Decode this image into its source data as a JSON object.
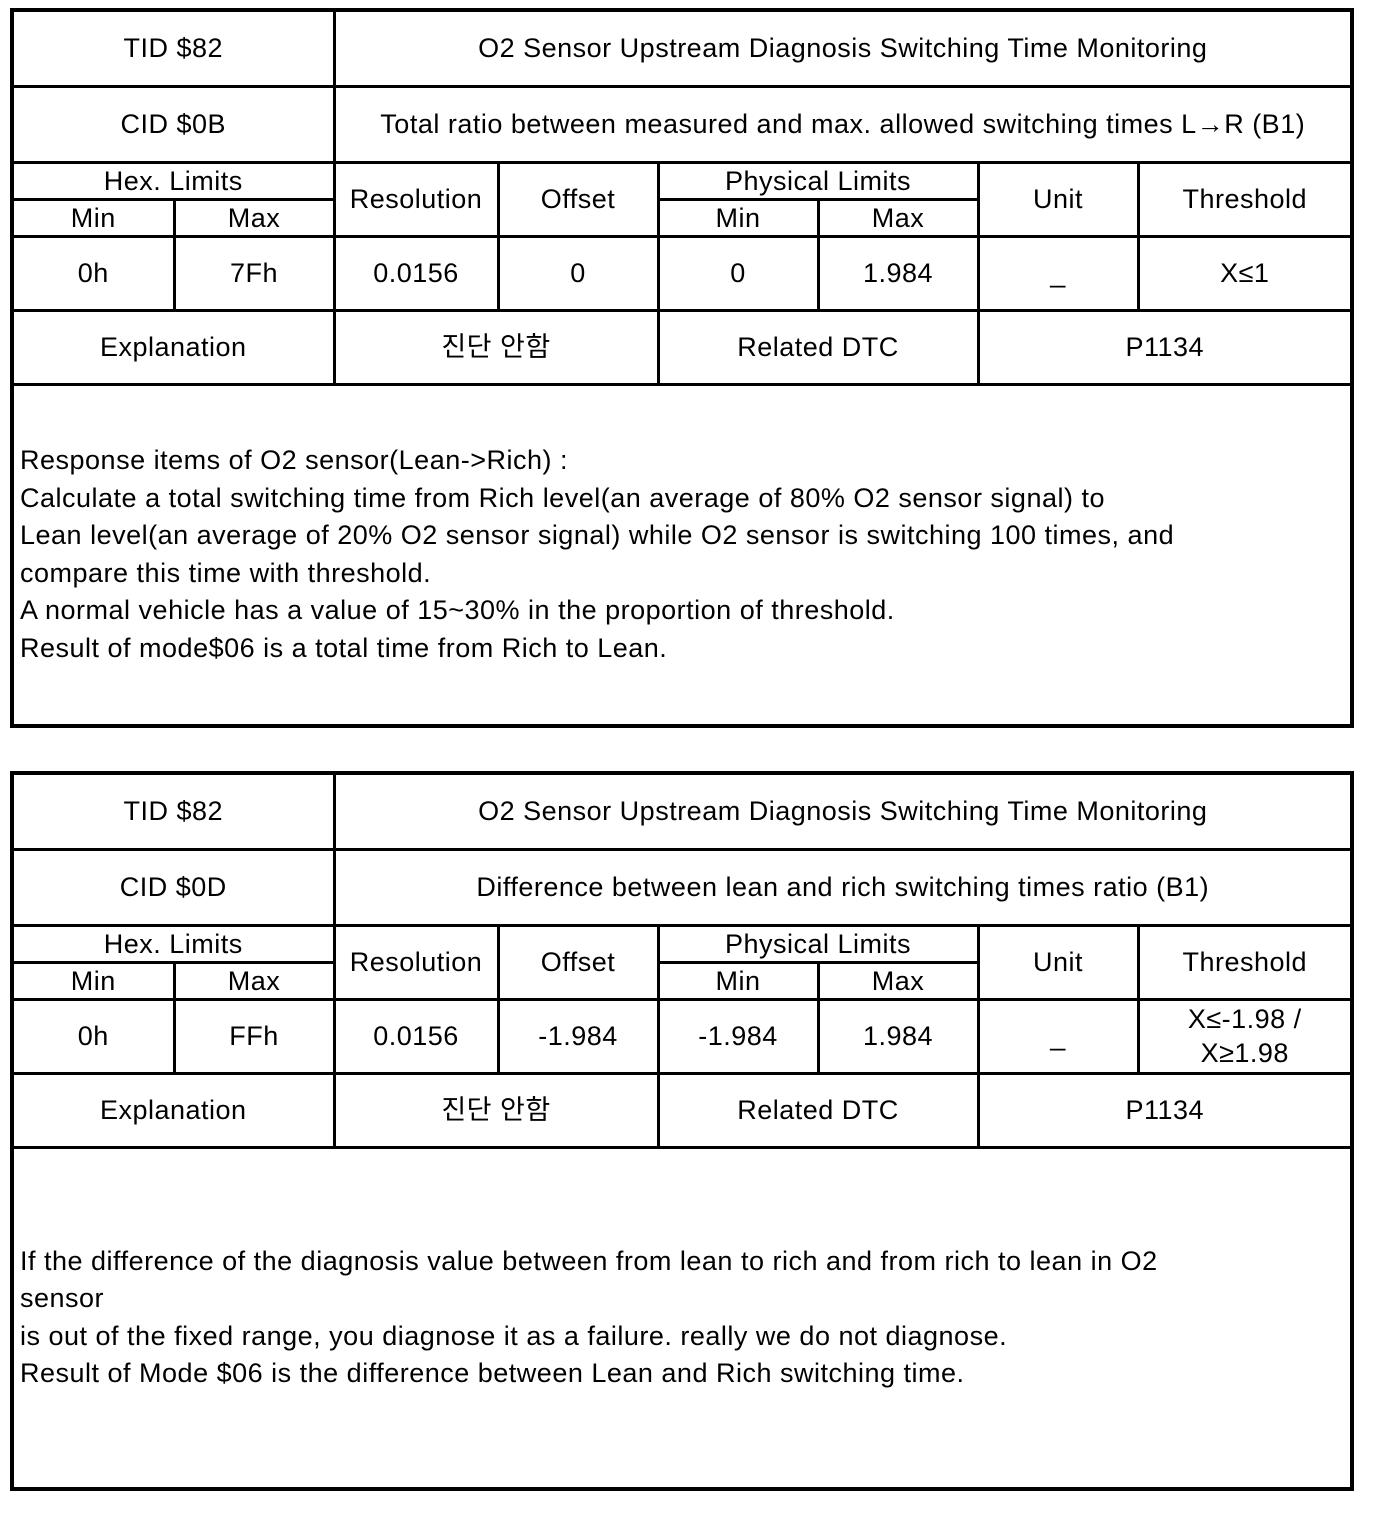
{
  "tables": [
    {
      "tid": "TID $82",
      "title": "O2 Sensor Upstream Diagnosis Switching Time Monitoring",
      "cid": "CID $0B",
      "cid_desc": "Total ratio between measured and max. allowed switching times L→R (B1)",
      "headers": {
        "hex_limits": "Hex. Limits",
        "min": "Min",
        "max": "Max",
        "resolution": "Resolution",
        "offset": "Offset",
        "physical_limits": "Physical Limits",
        "unit": "Unit",
        "threshold": "Threshold"
      },
      "values": {
        "hex_min": "0h",
        "hex_max": "7Fh",
        "resolution": "0.0156",
        "offset": "0",
        "phys_min": "0",
        "phys_max": "1.984",
        "unit": "_",
        "threshold": "X≤1"
      },
      "explanation_label": "Explanation",
      "explanation_value": "진단 안함",
      "related_dtc_label": "Related DTC",
      "related_dtc_value": "P1134",
      "description_lines": [
        "Response items of O2 sensor(Lean->Rich) :",
        "Calculate a total switching time from Rich level(an average of 80% O2 sensor signal) to",
        "Lean level(an average of 20% O2 sensor signal) while O2 sensor is switching 100 times, and",
        "compare this time with threshold.",
        "A normal vehicle has a value of 15~30% in the proportion of threshold.",
        "Result of mode$06 is a total time from Rich to Lean."
      ]
    },
    {
      "tid": "TID $82",
      "title": "O2 Sensor Upstream Diagnosis Switching Time Monitoring",
      "cid": "CID $0D",
      "cid_desc": "Difference between lean and rich switching times ratio (B1)",
      "headers": {
        "hex_limits": "Hex. Limits",
        "min": "Min",
        "max": "Max",
        "resolution": "Resolution",
        "offset": "Offset",
        "physical_limits": "Physical Limits",
        "unit": "Unit",
        "threshold": "Threshold"
      },
      "values": {
        "hex_min": "0h",
        "hex_max": "FFh",
        "resolution": "0.0156",
        "offset": "-1.984",
        "phys_min": "-1.984",
        "phys_max": "1.984",
        "unit": "_",
        "threshold": "X≤-1.98 / X≥1.98"
      },
      "explanation_label": "Explanation",
      "explanation_value": "진단 안함",
      "related_dtc_label": "Related DTC",
      "related_dtc_value": "P1134",
      "description_lines": [
        "If the difference of the diagnosis value between from lean to rich and from rich to lean in O2",
        "sensor",
        "is out of the fixed range, you diagnose it as a failure. really we do not diagnose.",
        "Result of Mode $06 is the difference between Lean and Rich switching time."
      ]
    }
  ]
}
